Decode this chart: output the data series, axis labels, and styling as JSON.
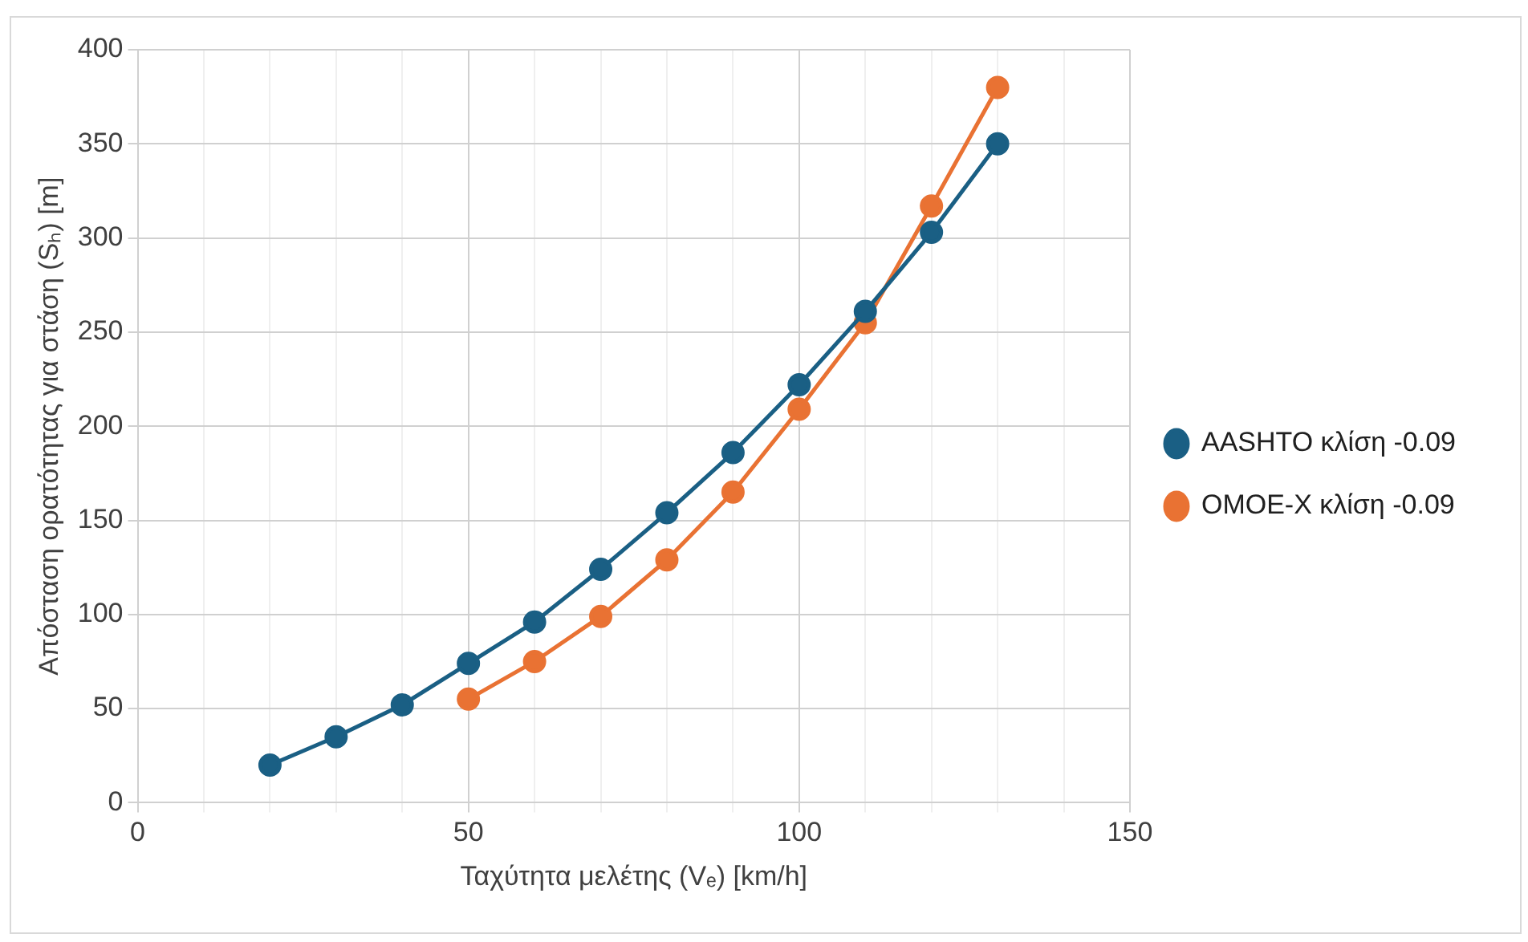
{
  "chart_data": {
    "type": "line",
    "xlabel": "Ταχύτητα μελέτης (Vₑ) [km/h]",
    "ylabel": "Απόσταση ορατότητας για στάση (Sₕ) [m]",
    "xlim": [
      0,
      150
    ],
    "xticks": [
      0,
      {
        "value": 10,
        "label": null
      },
      {
        "value": 20,
        "label": null
      },
      {
        "value": 30,
        "label": null
      },
      {
        "value": 40,
        "label": null
      },
      50,
      {
        "value": 60,
        "label": null
      },
      {
        "value": 70,
        "label": null
      },
      {
        "value": 80,
        "label": null
      },
      {
        "value": 90,
        "label": null
      },
      100,
      {
        "value": 110,
        "label": null
      },
      {
        "value": 120,
        "label": null
      },
      {
        "value": 130,
        "label": null
      },
      {
        "value": 140,
        "label": null
      },
      150
    ],
    "ylim": [
      0,
      400
    ],
    "yticks": [
      0,
      50,
      100,
      150,
      200,
      250,
      300,
      350,
      400
    ],
    "series": [
      {
        "name": "AASHTO κλίση -0.09",
        "color": "#1a5f84",
        "x": [
          20,
          30,
          40,
          50,
          60,
          70,
          80,
          90,
          100,
          110,
          120,
          130
        ],
        "values": [
          20,
          35,
          52,
          74,
          96,
          124,
          154,
          186,
          222,
          261,
          303,
          350
        ]
      },
      {
        "name": "OMOE-X κλίση -0.09",
        "color": "#e97233",
        "x": [
          50,
          60,
          70,
          80,
          90,
          100,
          110,
          120,
          130
        ],
        "values": [
          55,
          75,
          99,
          129,
          165,
          209,
          255,
          317,
          380
        ]
      }
    ],
    "grid": true,
    "legend": "right",
    "marker": "circle",
    "line_style": "solid"
  }
}
